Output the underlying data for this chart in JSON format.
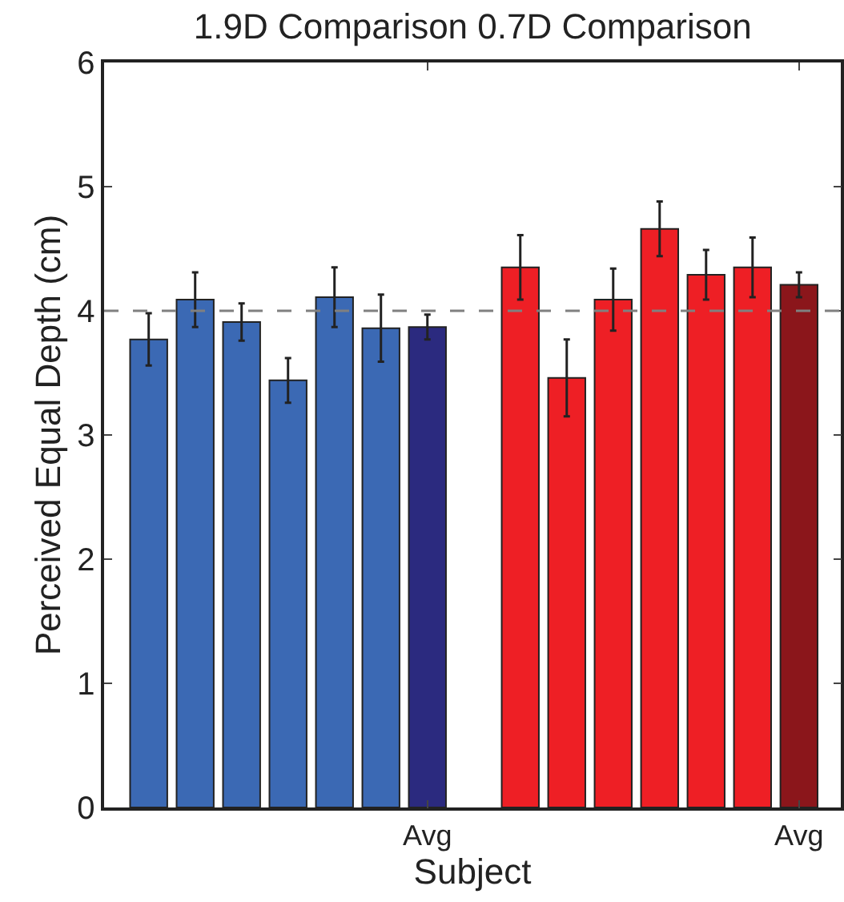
{
  "chart_data": {
    "type": "bar",
    "title": "1.9D Comparison 0.7D Comparison",
    "xlabel": "Subject",
    "ylabel": "Perceived Equal Depth (cm)",
    "categories": [
      null,
      null,
      null,
      null,
      null,
      null,
      "Avg",
      null,
      null,
      null,
      null,
      null,
      null,
      null,
      "Avg"
    ],
    "values": [
      3.77,
      4.09,
      3.91,
      3.44,
      4.11,
      3.86,
      3.87,
      null,
      4.35,
      3.46,
      4.09,
      4.66,
      4.29,
      4.35,
      4.21
    ],
    "errors": [
      0.21,
      0.22,
      0.15,
      0.18,
      0.24,
      0.27,
      0.1,
      null,
      0.26,
      0.31,
      0.25,
      0.22,
      0.2,
      0.24,
      0.1
    ],
    "colors": [
      "#3b69b4",
      "#3b69b4",
      "#3b69b4",
      "#3b69b4",
      "#3b69b4",
      "#3b69b4",
      "#2b2a7f",
      "#ffffff",
      "#ee1f25",
      "#ee1f25",
      "#ee1f25",
      "#ee1f25",
      "#ee1f25",
      "#ee1f25",
      "#8b161b"
    ],
    "ylim": [
      0,
      6
    ],
    "yticks": [
      0,
      1,
      2,
      3,
      4,
      5,
      6
    ],
    "ref_lines": [
      {
        "axis": "y",
        "value": 4,
        "label": null,
        "color": "#808080",
        "line_style": "dashed"
      }
    ],
    "grid": false
  }
}
